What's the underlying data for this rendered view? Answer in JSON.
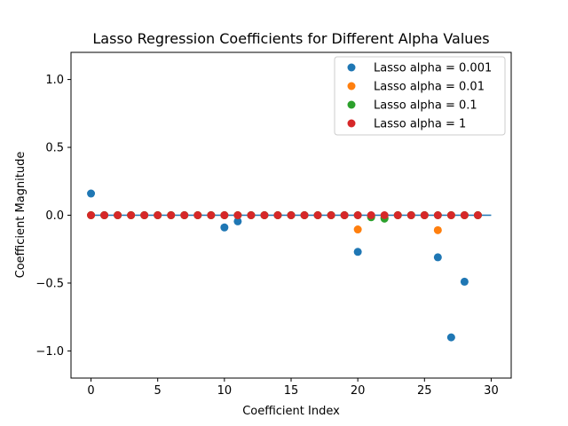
{
  "chart_data": {
    "type": "scatter",
    "title": "Lasso Regression Coefficients for Different Alpha Values",
    "xlabel": "Coefficient Index",
    "ylabel": "Coefficient Magnitude",
    "xlim": [
      -1.5,
      31.5
    ],
    "ylim": [
      -1.2,
      1.2
    ],
    "xticks": [
      0,
      5,
      10,
      15,
      20,
      25,
      30
    ],
    "xtick_labels": [
      "0",
      "5",
      "10",
      "15",
      "20",
      "25",
      "30"
    ],
    "yticks": [
      -1.0,
      -0.5,
      0.0,
      0.5,
      1.0
    ],
    "ytick_labels": [
      "−1.0",
      "−0.5",
      "0.0",
      "0.5",
      "1.0"
    ],
    "grid": false,
    "legend_position": "top-right",
    "reference_line": {
      "y": 0,
      "x_range": [
        0,
        30
      ],
      "color": "#1f77b4"
    },
    "x": [
      0,
      1,
      2,
      3,
      4,
      5,
      6,
      7,
      8,
      9,
      10,
      11,
      12,
      13,
      14,
      15,
      16,
      17,
      18,
      19,
      20,
      21,
      22,
      23,
      24,
      25,
      26,
      27,
      28,
      29
    ],
    "series": [
      {
        "name": "Lasso alpha = 0.001",
        "color": "#1f77b4",
        "values": [
          0.16,
          0,
          0,
          0,
          0,
          0,
          0,
          0,
          0,
          0,
          -0.09,
          -0.045,
          0,
          0,
          0,
          0,
          0,
          0,
          0,
          0,
          -0.27,
          -0.01,
          -0.02,
          0,
          0,
          0,
          -0.31,
          -0.9,
          -0.49,
          0
        ]
      },
      {
        "name": "Lasso alpha = 0.01",
        "color": "#ff7f0e",
        "values": [
          0,
          0,
          0,
          0,
          0,
          0,
          0,
          0,
          0,
          0,
          0,
          0,
          0,
          0,
          0,
          0,
          0,
          0,
          0,
          0,
          -0.105,
          -0.01,
          -0.02,
          0,
          0,
          0,
          -0.11,
          0,
          0,
          0
        ]
      },
      {
        "name": "Lasso alpha = 0.1",
        "color": "#2ca02c",
        "values": [
          0,
          0,
          0,
          0,
          0,
          0,
          0,
          0,
          0,
          0,
          0,
          0,
          0,
          0,
          0,
          0,
          0,
          0,
          0,
          0,
          0,
          -0.015,
          -0.025,
          0,
          0,
          0,
          0,
          0,
          0,
          0
        ]
      },
      {
        "name": "Lasso alpha = 1",
        "color": "#d62728",
        "values": [
          0,
          0,
          0,
          0,
          0,
          0,
          0,
          0,
          0,
          0,
          0,
          0,
          0,
          0,
          0,
          0,
          0,
          0,
          0,
          0,
          0,
          0,
          0,
          0,
          0,
          0,
          0,
          0,
          0,
          0
        ]
      }
    ]
  }
}
